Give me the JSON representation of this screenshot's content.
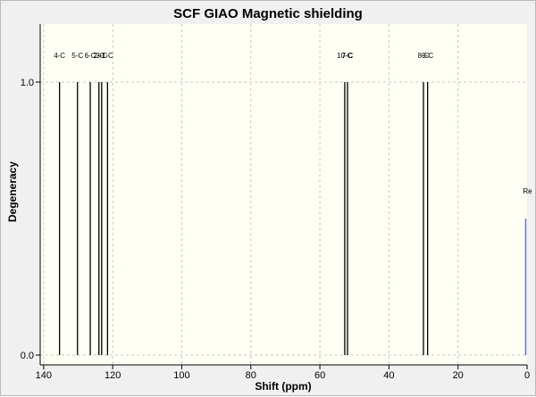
{
  "chart_data": {
    "type": "bar",
    "title": "SCF GIAO Magnetic shielding",
    "xlabel": "Shift (ppm)",
    "ylabel": "Degeneracy",
    "xlim": [
      141,
      0
    ],
    "ylim": [
      0,
      1.2
    ],
    "x_ticks": [
      "140",
      "120",
      "100",
      "80",
      "60",
      "40",
      "20",
      "0"
    ],
    "y_ticks": [
      "0.0",
      "1.0"
    ],
    "grid": true,
    "background_color": "#fffff5",
    "grid_color": "#c8c8c8",
    "peak_color": "#000000",
    "reference_color": "#6a6adc",
    "peaks": [
      {
        "label": "4-C",
        "shift": 135.4,
        "degeneracy": 1.0
      },
      {
        "label": "5-C",
        "shift": 130.2,
        "degeneracy": 1.0
      },
      {
        "label": "6-C",
        "shift": 126.5,
        "degeneracy": 1.0
      },
      {
        "label": "2-C",
        "shift": 124.0,
        "degeneracy": 1.0
      },
      {
        "label": "3-C",
        "shift": 123.2,
        "degeneracy": 1.0
      },
      {
        "label": "1-C",
        "shift": 121.5,
        "degeneracy": 1.0
      },
      {
        "label": "10-C",
        "shift": 52.8,
        "degeneracy": 1.0
      },
      {
        "label": "7-C",
        "shift": 52.0,
        "degeneracy": 1.0
      },
      {
        "label": "8-C",
        "shift": 30.0,
        "degeneracy": 1.0
      },
      {
        "label": "9-C",
        "shift": 28.8,
        "degeneracy": 1.0
      }
    ],
    "reference": {
      "label": "Re",
      "shift": 0.4,
      "degeneracy": 0.5
    }
  }
}
